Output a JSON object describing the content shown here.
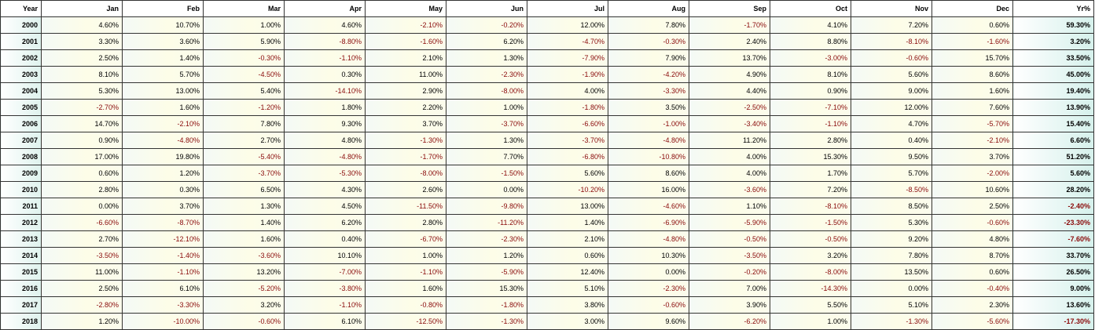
{
  "table": {
    "headers": [
      "Year",
      "Jan",
      "Feb",
      "Mar",
      "Apr",
      "May",
      "Jun",
      "Jul",
      "Aug",
      "Sep",
      "Oct",
      "Nov",
      "Dec",
      "Yr%"
    ],
    "rows": [
      {
        "year": "2000",
        "months": [
          "4.60%",
          "10.70%",
          "1.00%",
          "4.60%",
          "-2.10%",
          "-0.20%",
          "12.00%",
          "7.80%",
          "-1.70%",
          "4.10%",
          "7.20%",
          "0.60%"
        ],
        "total": "59.30%"
      },
      {
        "year": "2001",
        "months": [
          "3.30%",
          "3.60%",
          "5.90%",
          "-8.80%",
          "-1.60%",
          "6.20%",
          "-4.70%",
          "-0.30%",
          "2.40%",
          "8.80%",
          "-8.10%",
          "-1.60%"
        ],
        "total": "3.20%"
      },
      {
        "year": "2002",
        "months": [
          "2.50%",
          "1.40%",
          "-0.30%",
          "-1.10%",
          "2.10%",
          "1.30%",
          "-7.90%",
          "7.90%",
          "13.70%",
          "-3.00%",
          "-0.60%",
          "15.70%"
        ],
        "total": "33.50%"
      },
      {
        "year": "2003",
        "months": [
          "8.10%",
          "5.70%",
          "-4.50%",
          "0.30%",
          "11.00%",
          "-2.30%",
          "-1.90%",
          "-4.20%",
          "4.90%",
          "8.10%",
          "5.60%",
          "8.60%"
        ],
        "total": "45.00%"
      },
      {
        "year": "2004",
        "months": [
          "5.30%",
          "13.00%",
          "5.40%",
          "-14.10%",
          "2.90%",
          "-8.00%",
          "4.00%",
          "-3.30%",
          "4.40%",
          "0.90%",
          "9.00%",
          "1.60%"
        ],
        "total": "19.40%"
      },
      {
        "year": "2005",
        "months": [
          "-2.70%",
          "1.60%",
          "-1.20%",
          "1.80%",
          "2.20%",
          "1.00%",
          "-1.80%",
          "3.50%",
          "-2.50%",
          "-7.10%",
          "12.00%",
          "7.60%"
        ],
        "total": "13.90%"
      },
      {
        "year": "2006",
        "months": [
          "14.70%",
          "-2.10%",
          "7.80%",
          "9.30%",
          "3.70%",
          "-3.70%",
          "-6.60%",
          "-1.00%",
          "-3.40%",
          "-1.10%",
          "4.70%",
          "-5.70%"
        ],
        "total": "15.40%"
      },
      {
        "year": "2007",
        "months": [
          "0.90%",
          "-4.80%",
          "2.70%",
          "4.80%",
          "-1.30%",
          "1.30%",
          "-3.70%",
          "-4.80%",
          "11.20%",
          "2.80%",
          "0.40%",
          "-2.10%"
        ],
        "total": "6.60%"
      },
      {
        "year": "2008",
        "months": [
          "17.00%",
          "19.80%",
          "-5.40%",
          "-4.80%",
          "-1.70%",
          "7.70%",
          "-6.80%",
          "-10.80%",
          "4.00%",
          "15.30%",
          "9.50%",
          "3.70%"
        ],
        "total": "51.20%"
      },
      {
        "year": "2009",
        "months": [
          "0.60%",
          "1.20%",
          "-3.70%",
          "-5.30%",
          "-8.00%",
          "-1.50%",
          "5.60%",
          "8.60%",
          "4.00%",
          "1.70%",
          "5.70%",
          "-2.00%"
        ],
        "total": "5.60%"
      },
      {
        "year": "2010",
        "months": [
          "2.80%",
          "0.30%",
          "6.50%",
          "4.30%",
          "2.60%",
          "0.00%",
          "-10.20%",
          "16.00%",
          "-3.60%",
          "7.20%",
          "-8.50%",
          "10.60%"
        ],
        "total": "28.20%"
      },
      {
        "year": "2011",
        "months": [
          "0.00%",
          "3.70%",
          "1.30%",
          "4.50%",
          "-11.50%",
          "-9.80%",
          "13.00%",
          "-4.60%",
          "1.10%",
          "-8.10%",
          "8.50%",
          "2.50%"
        ],
        "total": "-2.40%"
      },
      {
        "year": "2012",
        "months": [
          "-6.60%",
          "-8.70%",
          "1.40%",
          "6.20%",
          "2.80%",
          "-11.20%",
          "1.40%",
          "-6.90%",
          "-5.90%",
          "-1.50%",
          "5.30%",
          "-0.60%"
        ],
        "total": "-23.30%"
      },
      {
        "year": "2013",
        "months": [
          "2.70%",
          "-12.10%",
          "1.60%",
          "0.40%",
          "-6.70%",
          "-2.30%",
          "2.10%",
          "-4.80%",
          "-0.50%",
          "-0.50%",
          "9.20%",
          "4.80%"
        ],
        "total": "-7.60%"
      },
      {
        "year": "2014",
        "months": [
          "-3.50%",
          "-1.40%",
          "-3.60%",
          "10.10%",
          "1.00%",
          "1.20%",
          "0.60%",
          "10.30%",
          "-3.50%",
          "3.20%",
          "7.80%",
          "8.70%"
        ],
        "total": "33.70%"
      },
      {
        "year": "2015",
        "months": [
          "11.00%",
          "-1.10%",
          "13.20%",
          "-7.00%",
          "-1.10%",
          "-5.90%",
          "12.40%",
          "0.00%",
          "-0.20%",
          "-8.00%",
          "13.50%",
          "0.60%"
        ],
        "total": "26.50%"
      },
      {
        "year": "2016",
        "months": [
          "2.50%",
          "6.10%",
          "-5.20%",
          "-3.80%",
          "1.60%",
          "15.30%",
          "5.10%",
          "-2.30%",
          "7.00%",
          "-14.30%",
          "0.00%",
          "-0.40%"
        ],
        "total": "9.00%"
      },
      {
        "year": "2017",
        "months": [
          "-2.80%",
          "-3.30%",
          "3.20%",
          "-1.10%",
          "-0.80%",
          "-1.80%",
          "3.80%",
          "-0.60%",
          "3.90%",
          "5.50%",
          "5.10%",
          "2.30%"
        ],
        "total": "13.60%"
      },
      {
        "year": "2018",
        "months": [
          "1.20%",
          "-10.00%",
          "-0.60%",
          "6.10%",
          "-12.50%",
          "-1.30%",
          "3.00%",
          "9.60%",
          "-6.20%",
          "1.00%",
          "-1.30%",
          "-5.60%"
        ],
        "total": "-17.30%"
      }
    ]
  },
  "colors": {
    "negative_text": "#8a0a0a",
    "positive_text": "#000000",
    "border": "#333333"
  }
}
